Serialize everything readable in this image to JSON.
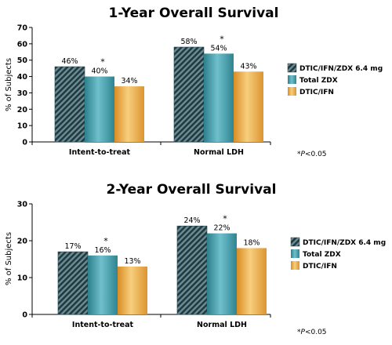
{
  "colors": {
    "series1": "#2f4f57",
    "series2": "#3a9aa8",
    "series3": "#e9a640",
    "axis": "#000000"
  },
  "chart_data": [
    {
      "type": "bar",
      "title": "1-Year Overall Survival",
      "ylabel": "% of Subjects",
      "xlabel": "",
      "ylim": [
        0,
        70
      ],
      "yticks": [
        0,
        10,
        20,
        30,
        40,
        50,
        60,
        70
      ],
      "categories": [
        "Intent-to-treat",
        "Normal LDH"
      ],
      "series": [
        {
          "name": "DTIC/IFN/ZDX 6.4 mg",
          "values": [
            46,
            58
          ],
          "labels": [
            "46%",
            "58%"
          ],
          "marked": [
            false,
            false
          ],
          "pattern": "hatched"
        },
        {
          "name": "Total ZDX",
          "values": [
            40,
            54
          ],
          "labels": [
            "40%",
            "54%"
          ],
          "marked": [
            true,
            true
          ],
          "pattern": "solid"
        },
        {
          "name": "DTIC/IFN",
          "values": [
            34,
            43
          ],
          "labels": [
            "34%",
            "43%"
          ],
          "marked": [
            false,
            false
          ],
          "pattern": "solid"
        }
      ],
      "significance_marker": "*",
      "footnote_star": "*",
      "footnote_p": "P",
      "footnote_rest": "<0.05",
      "legend_position": "right"
    },
    {
      "type": "bar",
      "title": "2-Year Overall Survival",
      "ylabel": "% of Subjects",
      "xlabel": "",
      "ylim": [
        0,
        30
      ],
      "yticks": [
        0,
        10,
        20,
        30
      ],
      "categories": [
        "Intent-to-treat",
        "Normal LDH"
      ],
      "series": [
        {
          "name": "DTIC/IFN/ZDX 6.4 mg",
          "values": [
            17,
            24
          ],
          "labels": [
            "17%",
            "24%"
          ],
          "marked": [
            false,
            false
          ],
          "pattern": "hatched"
        },
        {
          "name": "Total ZDX",
          "values": [
            16,
            22
          ],
          "labels": [
            "16%",
            "22%"
          ],
          "marked": [
            true,
            true
          ],
          "pattern": "solid"
        },
        {
          "name": "DTIC/IFN",
          "values": [
            13,
            18
          ],
          "labels": [
            "13%",
            "18%"
          ],
          "marked": [
            false,
            false
          ],
          "pattern": "solid"
        }
      ],
      "significance_marker": "*",
      "footnote_star": "*",
      "footnote_p": "P",
      "footnote_rest": "<0.05",
      "legend_position": "right"
    }
  ]
}
